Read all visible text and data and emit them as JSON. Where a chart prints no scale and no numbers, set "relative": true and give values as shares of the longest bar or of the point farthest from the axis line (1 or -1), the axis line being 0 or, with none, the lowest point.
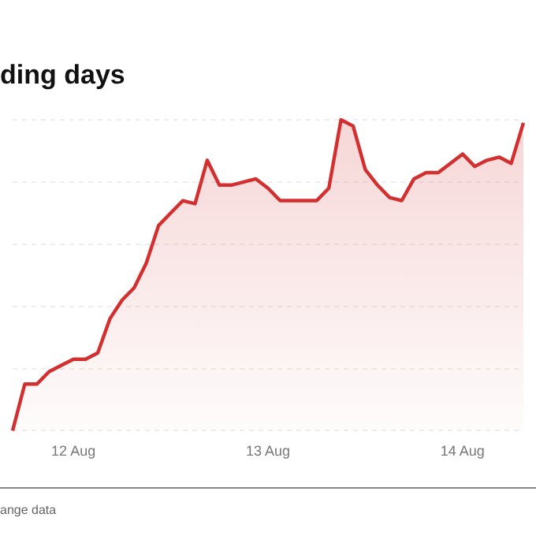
{
  "chart_data": {
    "type": "area",
    "title": "ding days",
    "relative": true,
    "grid": "y",
    "legend": false,
    "marker": "none",
    "line_style": "solid",
    "categories": [
      null,
      null,
      null,
      null,
      null,
      "12 Aug",
      null,
      null,
      null,
      null,
      null,
      null,
      null,
      null,
      null,
      null,
      null,
      null,
      null,
      null,
      null,
      "13 Aug",
      null,
      null,
      null,
      null,
      null,
      null,
      null,
      null,
      null,
      null,
      null,
      null,
      null,
      null,
      null,
      "14 Aug",
      null,
      null,
      null,
      null,
      null
    ],
    "series": [
      {
        "color": "#d32f2f",
        "values": [
          0,
          0.15,
          0.15,
          0.19,
          0.21,
          0.23,
          0.23,
          0.25,
          0.36,
          0.42,
          0.46,
          0.54,
          0.66,
          0.7,
          0.74,
          0.73,
          0.87,
          0.79,
          0.79,
          0.8,
          0.81,
          0.78,
          0.74,
          0.74,
          0.74,
          0.74,
          0.78,
          1,
          0.98,
          0.84,
          0.79,
          0.75,
          0.74,
          0.81,
          0.83,
          0.83,
          0.86,
          0.89,
          0.85,
          0.87,
          0.88,
          0.86,
          0.99
        ]
      }
    ],
    "annotations": [
      "ange data"
    ]
  }
}
